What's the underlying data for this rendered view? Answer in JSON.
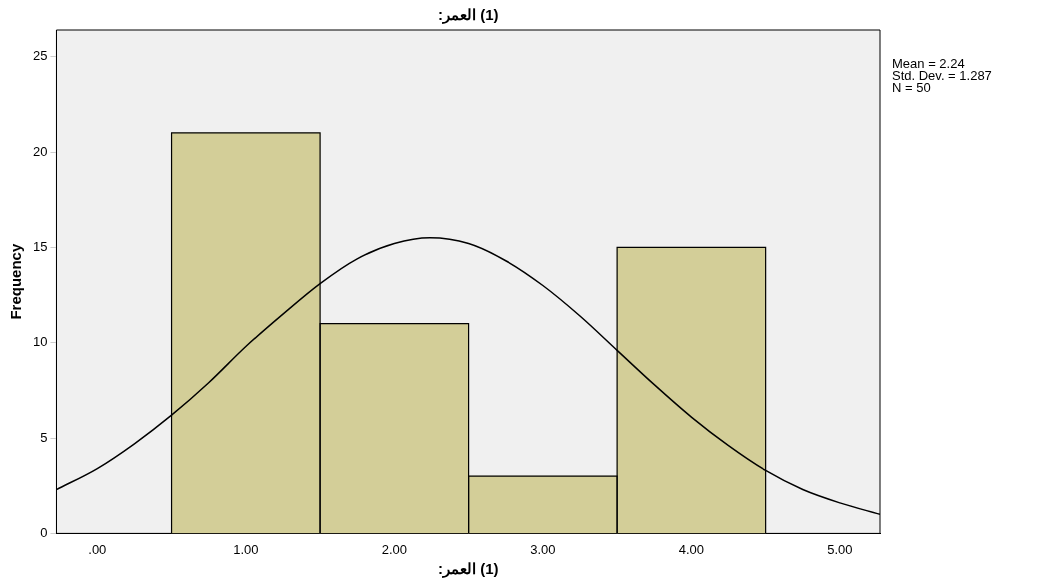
{
  "chart_data": {
    "type": "histogram",
    "title": "(1) العمر:",
    "xlabel": "(1) العمر:",
    "ylabel": "Frequency",
    "bins": [
      0.5,
      1.5,
      2.5,
      3.5,
      4.5
    ],
    "values": [
      21,
      11,
      3,
      15
    ],
    "color": "#d3ce98",
    "series": [
      {
        "type": "line",
        "color": "#000000",
        "x": [
          -0.275,
          0,
          0.25,
          0.5,
          0.75,
          1,
          1.25,
          1.5,
          1.75,
          2,
          2.24,
          2.5,
          2.75,
          3,
          3.25,
          3.5,
          3.75,
          4,
          4.25,
          4.5,
          4.75,
          5,
          5.27
        ],
        "values": [
          2.3,
          3.4,
          4.7,
          6.2,
          7.9,
          9.8,
          11.5,
          13.1,
          14.4,
          15.2,
          15.5,
          15.2,
          14.3,
          13.0,
          11.4,
          9.6,
          7.8,
          6.1,
          4.6,
          3.3,
          2.3,
          1.6,
          1.0
        ]
      }
    ],
    "xlim": [
      -0.275,
      5.27
    ],
    "ylim": [
      0,
      26.4
    ],
    "xticks": [
      {
        "value": 0,
        "label": ".00"
      },
      {
        "value": 1,
        "label": "1.00"
      },
      {
        "value": 2,
        "label": "2.00"
      },
      {
        "value": 3,
        "label": "3.00"
      },
      {
        "value": 4,
        "label": "4.00"
      },
      {
        "value": 5,
        "label": "5.00"
      }
    ],
    "yticks": [
      0,
      5,
      10,
      15,
      20,
      25
    ],
    "grid": false,
    "legend": false,
    "marker": "none",
    "line_style": "solid",
    "annotations": [
      "Mean = 2.24",
      "Std. Dev. = 1.287",
      "N = 50"
    ]
  }
}
